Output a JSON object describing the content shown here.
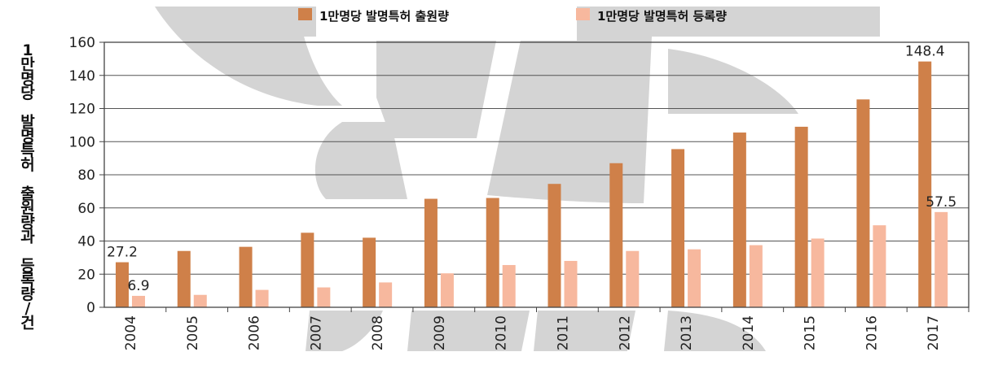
{
  "chart_data": {
    "type": "bar",
    "categories": [
      "2004",
      "2005",
      "2006",
      "2007",
      "2008",
      "2009",
      "2010",
      "2011",
      "2012",
      "2013",
      "2014",
      "2015",
      "2016",
      "2017"
    ],
    "series": [
      {
        "name": "1만명당 발명특허 출원량",
        "color": "#CF8049",
        "values": [
          27.2,
          34,
          36.5,
          45,
          42,
          65.5,
          66,
          74.5,
          87,
          95.5,
          105.5,
          109,
          125.5,
          148.4
        ]
      },
      {
        "name": "1만명당 발명특허 등록량",
        "color": "#F7B89E",
        "values": [
          6.9,
          7.5,
          10.5,
          12,
          15,
          20.5,
          25.5,
          28,
          34,
          35,
          37.5,
          41.5,
          49.5,
          57.5
        ]
      }
    ],
    "ylabel": "1만명당 발명특허 출원량과 등록량/건",
    "xlabel": "",
    "ylim": [
      0,
      160
    ],
    "yticks": [
      "0",
      "20",
      "40",
      "60",
      "80",
      "100",
      "120",
      "140",
      "160"
    ],
    "data_labels": [
      {
        "series": 0,
        "index": 0,
        "text": "27.2"
      },
      {
        "series": 1,
        "index": 0,
        "text": "6.9"
      },
      {
        "series": 0,
        "index": 13,
        "text": "148.4"
      },
      {
        "series": 1,
        "index": 13,
        "text": "57.5"
      }
    ],
    "grid": true,
    "legend_position": "top"
  }
}
